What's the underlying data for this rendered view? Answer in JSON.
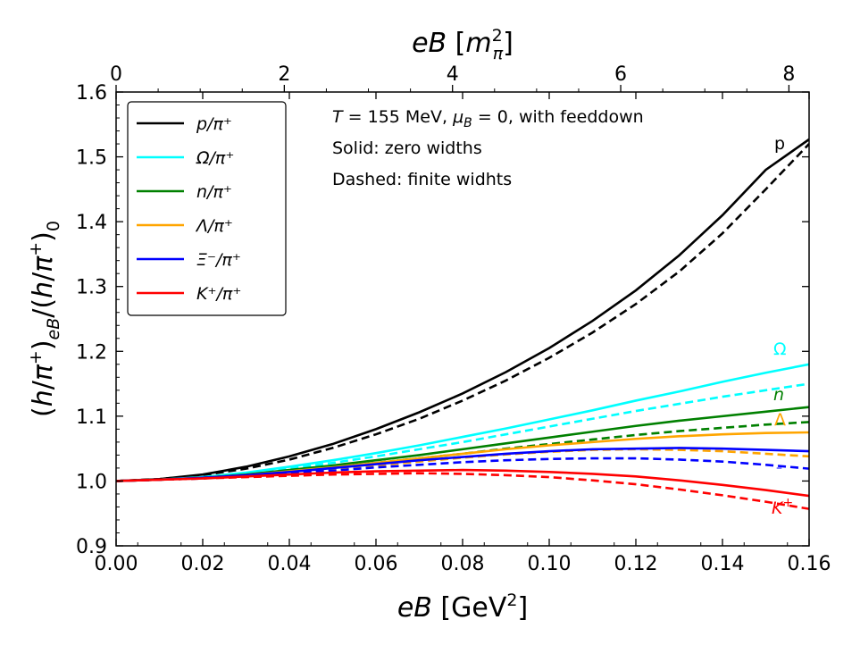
{
  "chart_data": {
    "type": "line",
    "xlabel_bottom": "eB [GeV²]",
    "xlabel_top": "eB [m_π²]",
    "ylabel": "(h/π⁺)_eB/(h/π⁺)_0",
    "xlim": [
      0.0,
      0.16
    ],
    "ylim": [
      0.9,
      1.6
    ],
    "top_axis_factor": 51.5,
    "x_ticks": [
      "0.00",
      "0.02",
      "0.04",
      "0.06",
      "0.08",
      "0.10",
      "0.12",
      "0.14",
      "0.16"
    ],
    "y_ticks": [
      "0.9",
      "1.0",
      "1.1",
      "1.2",
      "1.3",
      "1.4",
      "1.5",
      "1.6"
    ],
    "top_ticks": [
      "0",
      "2",
      "4",
      "6",
      "8"
    ],
    "annotations": [
      "T = 155 MeV, μ_B = 0, with feeddown",
      "Solid: zero widths",
      "Dashed: finite widhts"
    ],
    "x": [
      0.0,
      0.01,
      0.02,
      0.03,
      0.04,
      0.05,
      0.06,
      0.07,
      0.08,
      0.09,
      0.1,
      0.11,
      0.12,
      0.13,
      0.14,
      0.15,
      0.16
    ],
    "series": [
      {
        "name": "p/π⁺",
        "label": "p",
        "color": "#000000",
        "solid": [
          1.0,
          1.003,
          1.01,
          1.022,
          1.038,
          1.057,
          1.08,
          1.106,
          1.135,
          1.168,
          1.205,
          1.247,
          1.294,
          1.348,
          1.41,
          1.48,
          1.527
        ],
        "dashed": [
          1.0,
          1.003,
          1.009,
          1.019,
          1.033,
          1.051,
          1.072,
          1.096,
          1.124,
          1.155,
          1.19,
          1.229,
          1.273,
          1.323,
          1.382,
          1.45,
          1.52
        ]
      },
      {
        "name": "Ω/π⁺",
        "label": "Ω",
        "color": "#00ffff",
        "solid": [
          1.0,
          1.002,
          1.006,
          1.013,
          1.022,
          1.032,
          1.043,
          1.055,
          1.068,
          1.081,
          1.095,
          1.109,
          1.124,
          1.138,
          1.153,
          1.167,
          1.18
        ],
        "dashed": [
          1.0,
          1.002,
          1.005,
          1.011,
          1.019,
          1.028,
          1.038,
          1.049,
          1.06,
          1.072,
          1.084,
          1.096,
          1.108,
          1.119,
          1.13,
          1.14,
          1.15
        ]
      },
      {
        "name": "n/π⁺",
        "label": "n",
        "color": "#008000",
        "solid": [
          1.0,
          1.002,
          1.005,
          1.01,
          1.017,
          1.024,
          1.032,
          1.04,
          1.049,
          1.058,
          1.067,
          1.076,
          1.085,
          1.093,
          1.1,
          1.107,
          1.114
        ],
        "dashed": [
          1.0,
          1.002,
          1.005,
          1.009,
          1.015,
          1.021,
          1.028,
          1.035,
          1.042,
          1.05,
          1.057,
          1.064,
          1.071,
          1.077,
          1.082,
          1.087,
          1.091
        ]
      },
      {
        "name": "Λ/π⁺",
        "label": "Λ",
        "color": "#ffa500",
        "solid": [
          1.0,
          1.002,
          1.005,
          1.009,
          1.015,
          1.021,
          1.028,
          1.035,
          1.042,
          1.049,
          1.055,
          1.06,
          1.065,
          1.069,
          1.072,
          1.074,
          1.075
        ],
        "dashed": [
          1.0,
          1.002,
          1.004,
          1.008,
          1.013,
          1.018,
          1.024,
          1.03,
          1.036,
          1.041,
          1.045,
          1.048,
          1.049,
          1.048,
          1.046,
          1.042,
          1.038
        ]
      },
      {
        "name": "Ξ⁻/π⁺",
        "label": "Ξ",
        "color": "#0000ff",
        "solid": [
          1.0,
          1.002,
          1.005,
          1.009,
          1.014,
          1.02,
          1.026,
          1.032,
          1.037,
          1.042,
          1.046,
          1.049,
          1.05,
          1.051,
          1.05,
          1.048,
          1.046
        ],
        "dashed": [
          1.0,
          1.002,
          1.004,
          1.008,
          1.012,
          1.016,
          1.021,
          1.025,
          1.029,
          1.032,
          1.034,
          1.035,
          1.035,
          1.033,
          1.03,
          1.025,
          1.019
        ]
      },
      {
        "name": "K⁺/π⁺",
        "label": "K⁺",
        "color": "#ff0000",
        "solid": [
          1.0,
          1.002,
          1.004,
          1.007,
          1.01,
          1.013,
          1.015,
          1.016,
          1.017,
          1.016,
          1.014,
          1.011,
          1.007,
          1.001,
          0.994,
          0.986,
          0.977
        ],
        "dashed": [
          1.0,
          1.002,
          1.004,
          1.006,
          1.008,
          1.01,
          1.011,
          1.012,
          1.011,
          1.009,
          1.006,
          1.001,
          0.995,
          0.987,
          0.978,
          0.968,
          0.957
        ]
      }
    ],
    "legend_position": "upper-left",
    "grid": false
  }
}
